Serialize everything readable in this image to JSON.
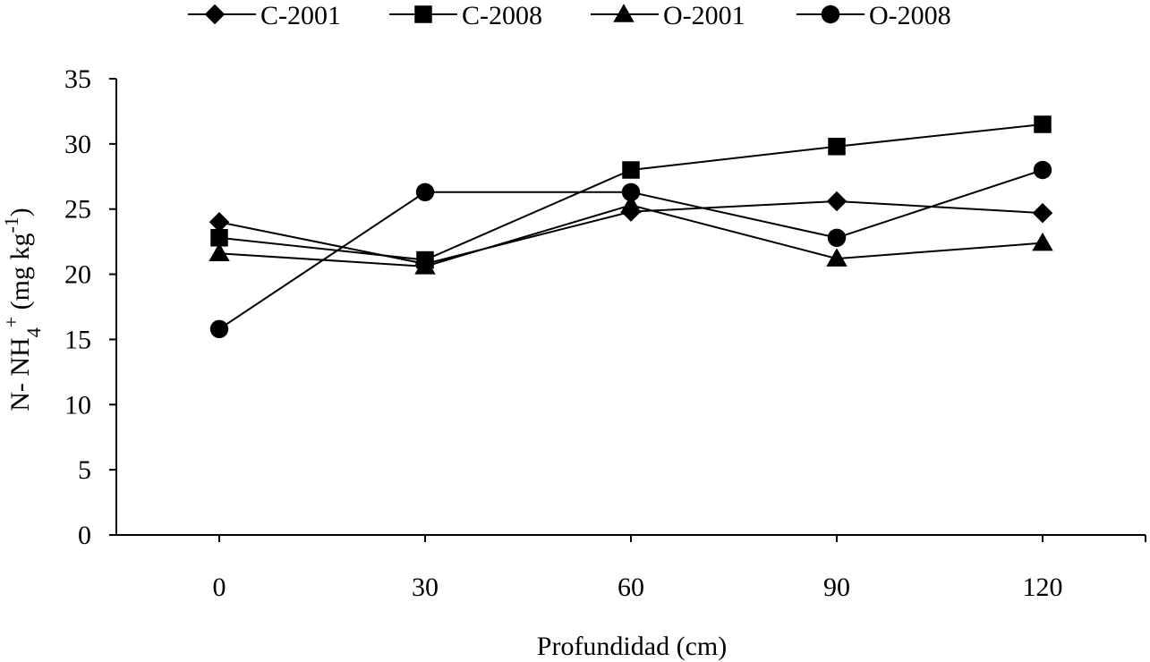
{
  "chart_data": {
    "type": "line",
    "title": "",
    "xlabel": "Profundidad (cm)",
    "ylabel": {
      "prefix": "N- NH",
      "sub": "4",
      "sup": "+",
      "middle": " (mg kg",
      "sup2": "-1",
      "suffix": ")"
    },
    "x": [
      0,
      30,
      60,
      90,
      120
    ],
    "xtick_labels": [
      "0",
      "30",
      "60",
      "90",
      "120"
    ],
    "ylim": [
      0,
      35
    ],
    "yticks": [
      0,
      5,
      10,
      15,
      20,
      25,
      30,
      35
    ],
    "ytick_labels": [
      "0",
      "5",
      "10",
      "15",
      "20",
      "25",
      "30",
      "35"
    ],
    "grid": false,
    "legend_position": "top",
    "series": [
      {
        "name": "C-2001",
        "marker": "diamond",
        "values": [
          24.0,
          20.8,
          24.8,
          25.6,
          24.7
        ]
      },
      {
        "name": "C-2008",
        "marker": "square",
        "values": [
          22.8,
          21.1,
          28.0,
          29.8,
          31.5
        ]
      },
      {
        "name": "O-2001",
        "marker": "triangle",
        "values": [
          21.6,
          20.6,
          25.3,
          21.2,
          22.4
        ]
      },
      {
        "name": "O-2008",
        "marker": "circle",
        "values": [
          15.8,
          26.3,
          26.3,
          22.8,
          28.0
        ]
      }
    ]
  }
}
